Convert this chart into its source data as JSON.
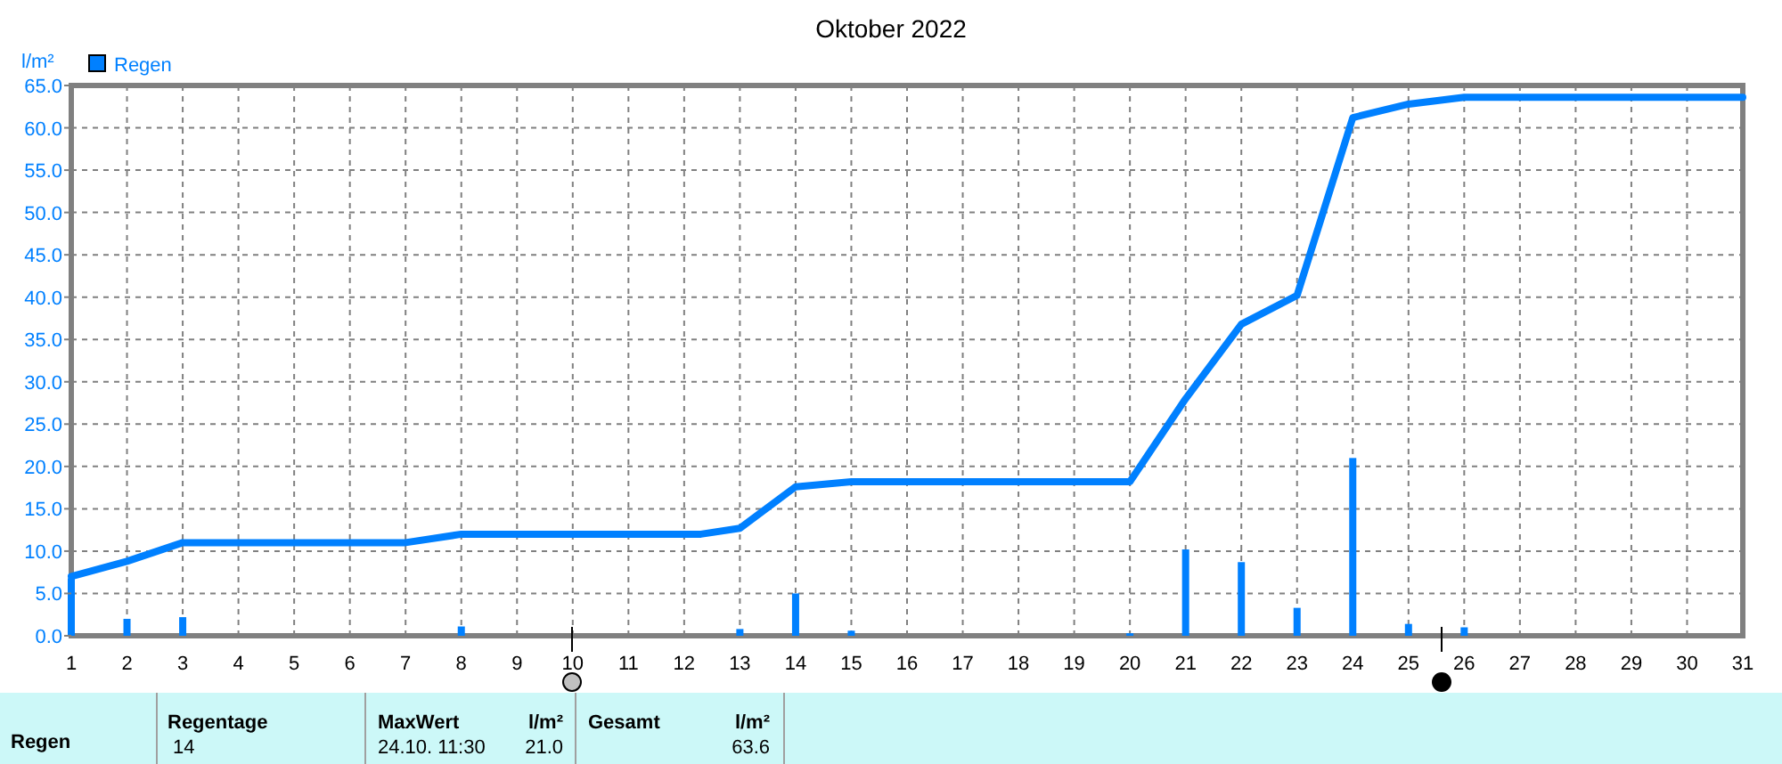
{
  "chart_data": {
    "type": "bar",
    "title": "Oktober 2022",
    "ylabel": "l/m²",
    "xlim": [
      1,
      31
    ],
    "xticks": [
      1,
      2,
      3,
      4,
      5,
      6,
      7,
      8,
      9,
      10,
      11,
      12,
      13,
      14,
      15,
      16,
      17,
      18,
      19,
      20,
      21,
      22,
      23,
      24,
      25,
      26,
      27,
      28,
      29,
      30,
      31
    ],
    "ylim": [
      0,
      65
    ],
    "yticks": [
      {
        "value": 0,
        "label": "0.0"
      },
      {
        "value": 5,
        "label": "5.0"
      },
      {
        "value": 10,
        "label": "10.0"
      },
      {
        "value": 15,
        "label": "15.0"
      },
      {
        "value": 20,
        "label": "20.0"
      },
      {
        "value": 25,
        "label": "25.0"
      },
      {
        "value": 30,
        "label": "30.0"
      },
      {
        "value": 35,
        "label": "35.0"
      },
      {
        "value": 40,
        "label": "40.0"
      },
      {
        "value": 45,
        "label": "45.0"
      },
      {
        "value": 50,
        "label": "50.0"
      },
      {
        "value": 55,
        "label": "55.0"
      },
      {
        "value": 60,
        "label": "60.0"
      },
      {
        "value": 65,
        "label": "65.0"
      }
    ],
    "grid": true,
    "legend": "top left",
    "series": [
      {
        "name": "Regen",
        "color": "#0080ff",
        "x": [
          1,
          2,
          3,
          8,
          13,
          14,
          15,
          20,
          21,
          22,
          23,
          24,
          25,
          26
        ],
        "values": [
          6.8,
          2.0,
          2.2,
          1.1,
          0.8,
          5.0,
          0.6,
          0.3,
          10.2,
          8.7,
          3.3,
          21.0,
          1.4,
          1.0
        ]
      },
      {
        "type": "line",
        "color": "#0080ff",
        "x": [
          1,
          2,
          3,
          7,
          8,
          12.3,
          13,
          14,
          15,
          20,
          21,
          22,
          23,
          24,
          25,
          26,
          31
        ],
        "values": [
          7.0,
          8.8,
          11.0,
          11.0,
          12.0,
          12.0,
          12.7,
          17.6,
          18.2,
          18.2,
          28.0,
          36.8,
          40.2,
          61.2,
          62.8,
          63.6,
          63.6
        ]
      }
    ],
    "annotations": [
      "Regen",
      "Regentage",
      "14",
      "MaxWert",
      "l/m²",
      "24.10.  11:30",
      "21.0",
      "Gesamt",
      "l/m²",
      "63.6"
    ]
  }
}
